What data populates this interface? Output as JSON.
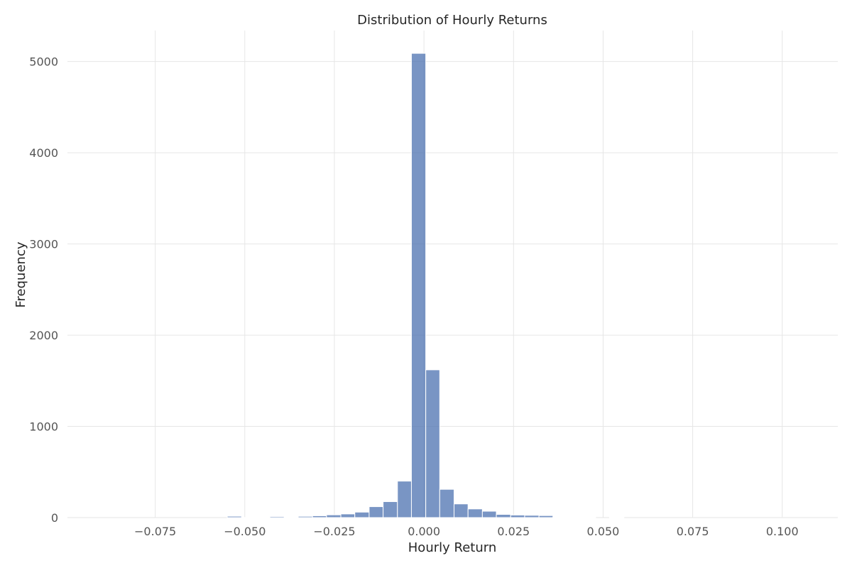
{
  "chart_data": {
    "type": "bar",
    "title": "Distribution of Hourly Returns",
    "xlabel": "Hourly Return",
    "ylabel": "Frequency",
    "xlim": [
      -0.0995,
      0.1155
    ],
    "ylim": [
      0,
      5340
    ],
    "xticks": [
      -0.075,
      -0.05,
      -0.025,
      0.0,
      0.025,
      0.05,
      0.075,
      0.1
    ],
    "xtick_labels": [
      "−0.075",
      "−0.050",
      "−0.025",
      "0.000",
      "0.025",
      "0.050",
      "0.075",
      "0.100"
    ],
    "yticks": [
      0,
      1000,
      2000,
      3000,
      4000,
      5000
    ],
    "ytick_labels": [
      "0",
      "1000",
      "2000",
      "3000",
      "4000",
      "5000"
    ],
    "grid": true,
    "color": "#4c72b0",
    "bins": [
      {
        "x0": -0.0549,
        "x1": -0.0509,
        "count": 15
      },
      {
        "x0": -0.0509,
        "x1": -0.0469,
        "count": 2
      },
      {
        "x0": -0.0469,
        "x1": -0.043,
        "count": 5
      },
      {
        "x0": -0.043,
        "x1": -0.039,
        "count": 12
      },
      {
        "x0": -0.039,
        "x1": -0.0351,
        "count": 6
      },
      {
        "x0": -0.0351,
        "x1": -0.0311,
        "count": 14
      },
      {
        "x0": -0.0311,
        "x1": -0.0272,
        "count": 20
      },
      {
        "x0": -0.0272,
        "x1": -0.0232,
        "count": 30
      },
      {
        "x0": -0.0232,
        "x1": -0.0193,
        "count": 40
      },
      {
        "x0": -0.0193,
        "x1": -0.0153,
        "count": 60
      },
      {
        "x0": -0.0153,
        "x1": -0.0114,
        "count": 120
      },
      {
        "x0": -0.0114,
        "x1": -0.0074,
        "count": 175
      },
      {
        "x0": -0.0074,
        "x1": -0.0035,
        "count": 400
      },
      {
        "x0": -0.0035,
        "x1": 0.0005,
        "count": 5090
      },
      {
        "x0": 0.0005,
        "x1": 0.0044,
        "count": 1620
      },
      {
        "x0": 0.0044,
        "x1": 0.0084,
        "count": 310
      },
      {
        "x0": 0.0084,
        "x1": 0.0123,
        "count": 150
      },
      {
        "x0": 0.0123,
        "x1": 0.0163,
        "count": 95
      },
      {
        "x0": 0.0163,
        "x1": 0.0202,
        "count": 70
      },
      {
        "x0": 0.0202,
        "x1": 0.0242,
        "count": 35
      },
      {
        "x0": 0.0242,
        "x1": 0.0281,
        "count": 28
      },
      {
        "x0": 0.0281,
        "x1": 0.0321,
        "count": 25
      },
      {
        "x0": 0.0321,
        "x1": 0.036,
        "count": 22
      },
      {
        "x0": 0.036,
        "x1": 0.04,
        "count": 5
      },
      {
        "x0": 0.04,
        "x1": 0.0439,
        "count": 4
      },
      {
        "x0": 0.0439,
        "x1": 0.0479,
        "count": 3
      },
      {
        "x0": 0.0518,
        "x1": 0.0558,
        "count": 6
      }
    ]
  }
}
